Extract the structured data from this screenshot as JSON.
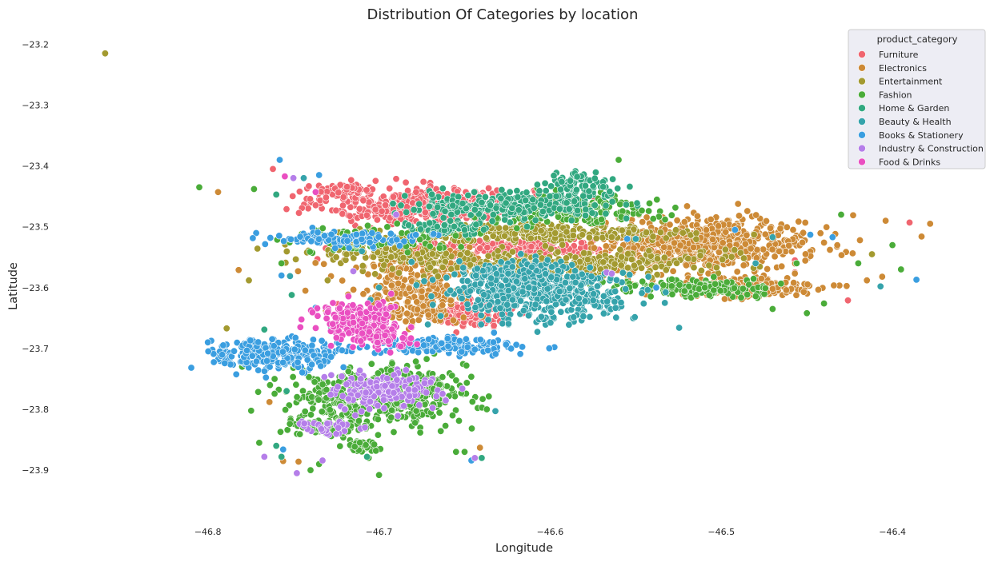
{
  "chart_data": {
    "type": "scatter",
    "title": "Distribution Of Categories by location",
    "xlabel": "Longitude",
    "ylabel": "Latitude",
    "xlim": [
      -46.87,
      -46.365
    ],
    "ylim": [
      -23.955,
      -23.185
    ],
    "x_ticks": [
      -46.8,
      -46.7,
      -46.6,
      -46.5,
      -46.4
    ],
    "x_tick_labels": [
      "−46.8",
      "−46.7",
      "−46.6",
      "−46.5",
      "−46.4"
    ],
    "y_ticks": [
      -23.2,
      -23.3,
      -23.4,
      -23.5,
      -23.6,
      -23.7,
      -23.8,
      -23.9
    ],
    "y_tick_labels": [
      "−23.2",
      "−23.3",
      "−23.4",
      "−23.5",
      "−23.6",
      "−23.7",
      "−23.8",
      "−23.9"
    ],
    "grid": false,
    "legend": {
      "title": "product_category",
      "placement": "top-right"
    },
    "series": [
      {
        "name": "Furniture",
        "color": "#f0656f",
        "clusters": [
          {
            "x": -46.67,
            "y": -23.465,
            "sx": 0.035,
            "sy": 0.017,
            "n": 520
          },
          {
            "x": -46.62,
            "y": -23.535,
            "sx": 0.045,
            "sy": 0.009,
            "n": 200
          },
          {
            "x": -46.645,
            "y": -23.645,
            "sx": 0.012,
            "sy": 0.012,
            "n": 120
          },
          {
            "x": -46.72,
            "y": -23.44,
            "sx": 0.012,
            "sy": 0.007,
            "n": 60
          }
        ],
        "outliers": [
          [
            -46.762,
            -23.405
          ],
          [
            -46.736,
            -23.553
          ],
          [
            -46.724,
            -23.627
          ],
          [
            -46.426,
            -23.621
          ],
          [
            -46.457,
            -23.555
          ],
          [
            -46.457,
            -23.575
          ],
          [
            -46.39,
            -23.493
          ]
        ]
      },
      {
        "name": "Electronics",
        "color": "#cd8a36",
        "clusters": [
          {
            "x": -46.51,
            "y": -23.53,
            "sx": 0.035,
            "sy": 0.024,
            "n": 650
          },
          {
            "x": -46.49,
            "y": -23.6,
            "sx": 0.028,
            "sy": 0.01,
            "n": 250
          },
          {
            "x": -46.68,
            "y": -23.62,
            "sx": 0.018,
            "sy": 0.028,
            "n": 240
          },
          {
            "x": -46.67,
            "y": -23.56,
            "sx": 0.03,
            "sy": 0.015,
            "n": 120
          }
        ],
        "outliers": [
          [
            -46.794,
            -23.443
          ],
          [
            -46.383,
            -23.516
          ],
          [
            -46.378,
            -23.495
          ],
          [
            -46.423,
            -23.481
          ],
          [
            -46.44,
            -23.526
          ],
          [
            -46.764,
            -23.788
          ],
          [
            -46.756,
            -23.885
          ],
          [
            -46.747,
            -23.886
          ],
          [
            -46.641,
            -23.863
          ],
          [
            -46.406,
            -23.582
          ],
          [
            -46.782,
            -23.571
          ],
          [
            -46.743,
            -23.605
          ],
          [
            -46.731,
            -23.638
          ],
          [
            -46.47,
            -23.602
          ],
          [
            -46.404,
            -23.49
          ]
        ]
      },
      {
        "name": "Entertainment",
        "color": "#a39a30",
        "clusters": [
          {
            "x": -46.615,
            "y": -23.51,
            "sx": 0.05,
            "sy": 0.008,
            "n": 320
          },
          {
            "x": -46.6,
            "y": -23.56,
            "sx": 0.055,
            "sy": 0.013,
            "n": 350
          },
          {
            "x": -46.7,
            "y": -23.54,
            "sx": 0.03,
            "sy": 0.01,
            "n": 80
          }
        ],
        "outliers": [
          [
            -46.86,
            -23.215
          ],
          [
            -46.789,
            -23.667
          ],
          [
            -46.73,
            -23.588
          ],
          [
            -46.412,
            -23.545
          ],
          [
            -46.776,
            -23.588
          ]
        ]
      },
      {
        "name": "Fashion",
        "color": "#4aac39",
        "clusters": [
          {
            "x": -46.7,
            "y": -23.78,
            "sx": 0.03,
            "sy": 0.028,
            "n": 480
          },
          {
            "x": -46.51,
            "y": -23.6,
            "sx": 0.028,
            "sy": 0.008,
            "n": 140
          },
          {
            "x": -46.59,
            "y": -23.47,
            "sx": 0.028,
            "sy": 0.014,
            "n": 200
          },
          {
            "x": -46.73,
            "y": -23.83,
            "sx": 0.012,
            "sy": 0.007,
            "n": 80
          },
          {
            "x": -46.71,
            "y": -23.86,
            "sx": 0.008,
            "sy": 0.006,
            "n": 40
          },
          {
            "x": -46.7,
            "y": -23.52,
            "sx": 0.03,
            "sy": 0.01,
            "n": 100
          }
        ],
        "outliers": [
          [
            -46.805,
            -23.435
          ],
          [
            -46.773,
            -23.438
          ],
          [
            -46.757,
            -23.56
          ],
          [
            -46.7,
            -23.908
          ],
          [
            -46.65,
            -23.87
          ],
          [
            -46.655,
            -23.87
          ],
          [
            -46.637,
            -23.8
          ],
          [
            -46.56,
            -23.39
          ],
          [
            -46.43,
            -23.48
          ],
          [
            -46.42,
            -23.56
          ],
          [
            -46.4,
            -23.53
          ],
          [
            -46.395,
            -23.57
          ],
          [
            -46.456,
            -23.56
          ],
          [
            -46.44,
            -23.626
          ],
          [
            -46.47,
            -23.635
          ],
          [
            -46.45,
            -23.642
          ],
          [
            -46.726,
            -23.77
          ],
          [
            -46.77,
            -23.855
          ],
          [
            -46.78,
            -23.73
          ],
          [
            -46.761,
            -23.75
          ],
          [
            -46.74,
            -23.9
          ],
          [
            -46.735,
            -23.89
          ],
          [
            -46.742,
            -23.71
          ],
          [
            -46.706,
            -23.88
          ]
        ]
      },
      {
        "name": "Home & Garden",
        "color": "#31a880",
        "clusters": [
          {
            "x": -46.625,
            "y": -23.465,
            "sx": 0.035,
            "sy": 0.012,
            "n": 280
          },
          {
            "x": -46.585,
            "y": -23.435,
            "sx": 0.012,
            "sy": 0.012,
            "n": 80
          },
          {
            "x": -46.66,
            "y": -23.5,
            "sx": 0.015,
            "sy": 0.008,
            "n": 60
          }
        ],
        "outliers": [
          [
            -46.76,
            -23.447
          ],
          [
            -46.728,
            -23.665
          ],
          [
            -46.754,
            -23.77
          ],
          [
            -46.751,
            -23.612
          ],
          [
            -46.767,
            -23.669
          ],
          [
            -46.757,
            -23.878
          ],
          [
            -46.707,
            -23.878
          ],
          [
            -46.64,
            -23.88
          ],
          [
            -46.76,
            -23.86
          ]
        ]
      },
      {
        "name": "Beauty & Health",
        "color": "#35a3ab",
        "clusters": [
          {
            "x": -46.605,
            "y": -23.61,
            "sx": 0.03,
            "sy": 0.025,
            "n": 500
          },
          {
            "x": -46.62,
            "y": -23.57,
            "sx": 0.02,
            "sy": 0.01,
            "n": 80
          }
        ],
        "outliers": [
          [
            -46.407,
            -23.598
          ],
          [
            -46.47,
            -23.517
          ],
          [
            -46.48,
            -23.56
          ],
          [
            -46.55,
            -23.52
          ],
          [
            -46.7,
            -23.6
          ],
          [
            -46.752,
            -23.581
          ],
          [
            -46.705,
            -23.62
          ],
          [
            -46.632,
            -23.803
          ],
          [
            -46.744,
            -23.42
          ],
          [
            -46.71,
            -23.54
          ]
        ]
      },
      {
        "name": "Books & Stationery",
        "color": "#3a9ee0",
        "clusters": [
          {
            "x": -46.76,
            "y": -23.71,
            "sx": 0.022,
            "sy": 0.015,
            "n": 260
          },
          {
            "x": -46.66,
            "y": -23.695,
            "sx": 0.025,
            "sy": 0.008,
            "n": 160
          },
          {
            "x": -46.72,
            "y": -23.52,
            "sx": 0.025,
            "sy": 0.008,
            "n": 110
          }
        ],
        "outliers": [
          [
            -46.758,
            -23.39
          ],
          [
            -46.386,
            -23.587
          ],
          [
            -46.435,
            -23.517
          ],
          [
            -46.448,
            -23.513
          ],
          [
            -46.492,
            -23.505
          ],
          [
            -46.735,
            -23.415
          ],
          [
            -46.757,
            -23.58
          ],
          [
            -46.737,
            -23.633
          ],
          [
            -46.555,
            -23.52
          ],
          [
            -46.538,
            -23.6
          ],
          [
            -46.8,
            -23.69
          ],
          [
            -46.756,
            -23.866
          ],
          [
            -46.646,
            -23.884
          ]
        ]
      },
      {
        "name": "Industry & Construction",
        "color": "#b57ee9",
        "clusters": [
          {
            "x": -46.7,
            "y": -23.77,
            "sx": 0.02,
            "sy": 0.018,
            "n": 160
          },
          {
            "x": -46.73,
            "y": -23.83,
            "sx": 0.01,
            "sy": 0.007,
            "n": 30
          }
        ],
        "outliers": [
          [
            -46.767,
            -23.878
          ],
          [
            -46.733,
            -23.884
          ],
          [
            -46.748,
            -23.905
          ],
          [
            -46.567,
            -23.575
          ],
          [
            -46.564,
            -23.577
          ],
          [
            -46.69,
            -23.48
          ],
          [
            -46.715,
            -23.573
          ],
          [
            -46.75,
            -23.42
          ],
          [
            -46.644,
            -23.88
          ],
          [
            -46.72,
            -23.8
          ]
        ]
      },
      {
        "name": "Food & Drinks",
        "color": "#ea4fc1",
        "clusters": [
          {
            "x": -46.712,
            "y": -23.655,
            "sx": 0.015,
            "sy": 0.015,
            "n": 200
          },
          {
            "x": -46.7,
            "y": -23.685,
            "sx": 0.01,
            "sy": 0.01,
            "n": 60
          }
        ],
        "outliers": [
          [
            -46.755,
            -23.417
          ],
          [
            -46.737,
            -23.443
          ]
        ]
      }
    ]
  }
}
